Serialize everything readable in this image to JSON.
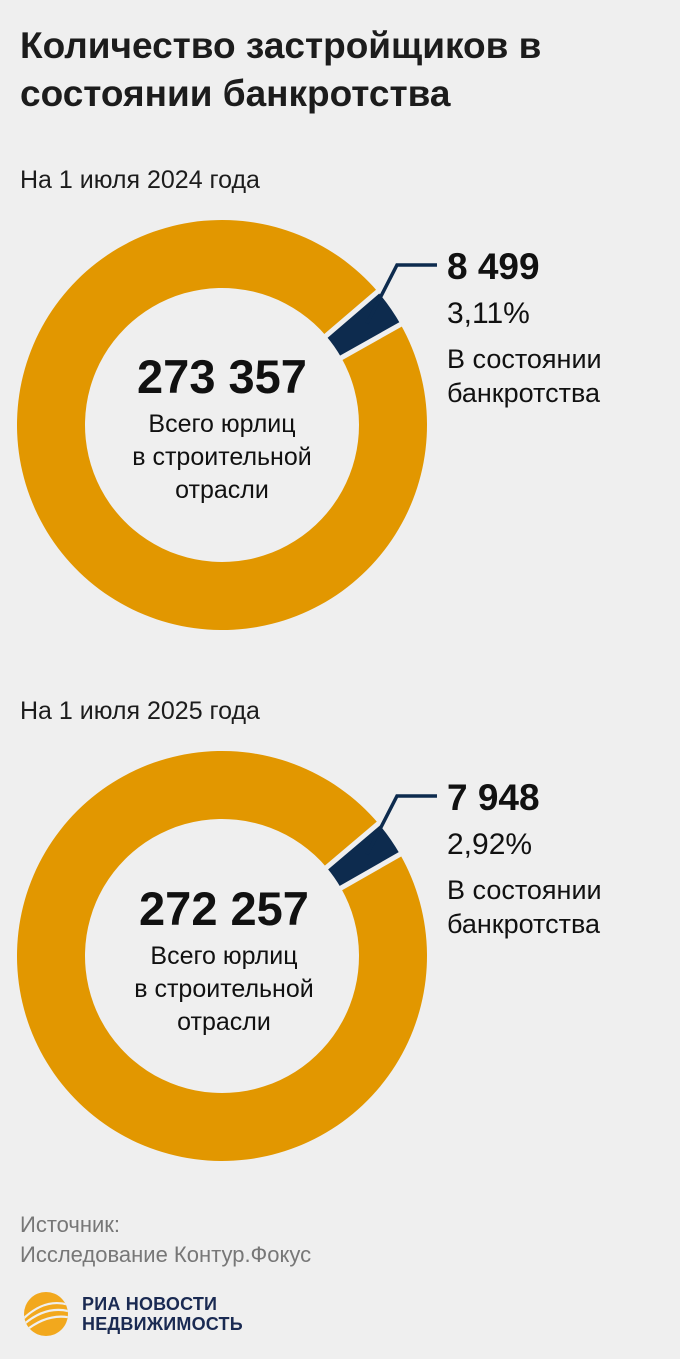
{
  "title": "Количество застройщиков в состоянии банкротства",
  "source": {
    "label": "Источник:",
    "text": "Исследование Контур.Фокус"
  },
  "logo": {
    "line1": "РИА НОВОСТИ",
    "line2": "НЕДВИЖИМОСТЬ"
  },
  "colors": {
    "total": "#e29700",
    "bankrupt": "#0d2b4e",
    "background": "#efefef"
  },
  "chart_data": [
    {
      "type": "pie",
      "subtitle": "На 1 июля 2024 года",
      "total": 273357,
      "total_text": "273 357",
      "total_label_lines": [
        "Всего юрлиц",
        "в строительной",
        "отрасли"
      ],
      "slices": [
        {
          "name": "В состоянии банкротства",
          "value": 8499,
          "value_text": "8 499",
          "percent": 3.11,
          "percent_text": "3,11%"
        }
      ],
      "callout_label_lines": [
        "В состоянии",
        "банкротства"
      ]
    },
    {
      "type": "pie",
      "subtitle": "На 1 июля 2025 года",
      "total": 272257,
      "total_text": "272 257",
      "total_label_lines": [
        "Всего юрлиц",
        "в строительной",
        "отрасли"
      ],
      "slices": [
        {
          "name": "В состоянии банкротства",
          "value": 7948,
          "value_text": "7 948",
          "percent": 2.92,
          "percent_text": "2,92%"
        }
      ],
      "callout_label_lines": [
        "В состоянии",
        "банкротства"
      ]
    }
  ]
}
